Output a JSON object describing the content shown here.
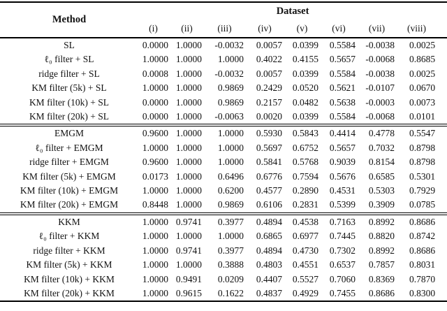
{
  "header": {
    "method_label": "Method",
    "dataset_label": "Dataset",
    "columns": [
      "(i)",
      "(ii)",
      "(iii)",
      "(iv)",
      "(v)",
      "(vi)",
      "(vii)",
      "(viii)"
    ]
  },
  "groups": [
    {
      "name": "SL",
      "rows": [
        {
          "method": "SL",
          "values": [
            "0.0000",
            "1.0000",
            "-0.0032",
            "0.0057",
            "0.0399",
            "0.5584",
            "-0.0038",
            "0.0025"
          ]
        },
        {
          "method": "ℓ₀ filter + SL",
          "values": [
            "1.0000",
            "1.0000",
            "1.0000",
            "0.4022",
            "0.4155",
            "0.5657",
            "-0.0068",
            "0.8685"
          ]
        },
        {
          "method": "ridge filter + SL",
          "values": [
            "0.0008",
            "1.0000",
            "-0.0032",
            "0.0057",
            "0.0399",
            "0.5584",
            "-0.0038",
            "0.0025"
          ]
        },
        {
          "method": "KM filter (5k) + SL",
          "values": [
            "1.0000",
            "1.0000",
            "0.9869",
            "0.2429",
            "0.0520",
            "0.5621",
            "-0.0107",
            "0.0670"
          ]
        },
        {
          "method": "KM filter (10k) + SL",
          "values": [
            "0.0000",
            "1.0000",
            "0.9869",
            "0.2157",
            "0.0482",
            "0.5638",
            "-0.0003",
            "0.0073"
          ]
        },
        {
          "method": "KM filter (20k) + SL",
          "values": [
            "0.0000",
            "1.0000",
            "-0.0063",
            "0.0020",
            "0.0399",
            "0.5584",
            "-0.0068",
            "0.0101"
          ]
        }
      ]
    },
    {
      "name": "EMGM",
      "rows": [
        {
          "method": "EMGM",
          "values": [
            "0.9600",
            "1.0000",
            "1.0000",
            "0.5930",
            "0.5843",
            "0.4414",
            "0.4778",
            "0.5547"
          ]
        },
        {
          "method": "ℓ₀ filter + EMGM",
          "values": [
            "1.0000",
            "1.0000",
            "1.0000",
            "0.5697",
            "0.6752",
            "0.5657",
            "0.7032",
            "0.8798"
          ]
        },
        {
          "method": "ridge filter + EMGM",
          "values": [
            "0.9600",
            "1.0000",
            "1.0000",
            "0.5841",
            "0.5768",
            "0.9039",
            "0.8154",
            "0.8798"
          ]
        },
        {
          "method": "KM filter (5k) + EMGM",
          "values": [
            "0.0173",
            "1.0000",
            "0.6496",
            "0.6776",
            "0.7594",
            "0.5676",
            "0.6585",
            "0.5301"
          ]
        },
        {
          "method": "KM filter (10k) + EMGM",
          "values": [
            "1.0000",
            "1.0000",
            "0.6200",
            "0.4577",
            "0.2890",
            "0.4531",
            "0.5303",
            "0.7929"
          ]
        },
        {
          "method": "KM filter (20k) + EMGM",
          "values": [
            "0.8448",
            "1.0000",
            "0.9869",
            "0.6106",
            "0.2831",
            "0.5399",
            "0.3909",
            "0.0785"
          ]
        }
      ]
    },
    {
      "name": "KKM",
      "rows": [
        {
          "method": "KKM",
          "values": [
            "1.0000",
            "0.9741",
            "0.3977",
            "0.4894",
            "0.4538",
            "0.7163",
            "0.8992",
            "0.8686"
          ]
        },
        {
          "method": "ℓ₀ filter + KKM",
          "values": [
            "1.0000",
            "1.0000",
            "1.0000",
            "0.6865",
            "0.6977",
            "0.7445",
            "0.8820",
            "0.8742"
          ]
        },
        {
          "method": "ridge filter + KKM",
          "values": [
            "1.0000",
            "0.9741",
            "0.3977",
            "0.4894",
            "0.4730",
            "0.7302",
            "0.8992",
            "0.8686"
          ]
        },
        {
          "method": "KM filter (5k) + KKM",
          "values": [
            "1.0000",
            "1.0000",
            "0.3888",
            "0.4803",
            "0.4551",
            "0.6537",
            "0.7857",
            "0.8031"
          ]
        },
        {
          "method": "KM filter (10k) + KKM",
          "values": [
            "1.0000",
            "0.9491",
            "0.0209",
            "0.4407",
            "0.5527",
            "0.7060",
            "0.8369",
            "0.7870"
          ]
        },
        {
          "method": "KM filter (20k) + KKM",
          "values": [
            "1.0000",
            "0.9615",
            "0.1622",
            "0.4837",
            "0.4929",
            "0.7455",
            "0.8686",
            "0.8300"
          ]
        }
      ]
    }
  ]
}
